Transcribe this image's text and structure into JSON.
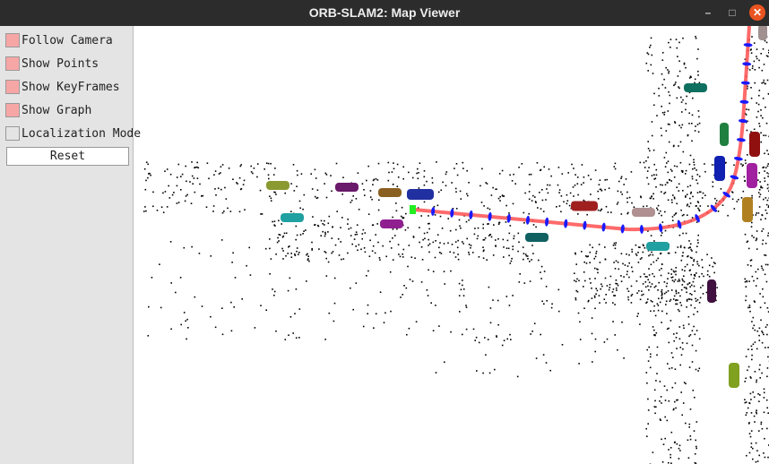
{
  "window": {
    "title": "ORB-SLAM2: Map Viewer",
    "minimize_icon": "minimize-icon",
    "maximize_icon": "maximize-icon",
    "close_icon": "close-icon"
  },
  "panel": {
    "checkboxes": [
      {
        "label": "Follow Camera",
        "checked": true
      },
      {
        "label": "Show Points",
        "checked": true
      },
      {
        "label": "Show KeyFrames",
        "checked": true
      },
      {
        "label": "Show Graph",
        "checked": true
      },
      {
        "label": "Localization Mode",
        "checked": false
      }
    ],
    "reset_label": "Reset"
  },
  "colors": {
    "trajectory": "#ff5050",
    "keyframe": "#1a1aff",
    "current_camera": "#22ee22",
    "map_points": "#000000",
    "checked": "#f7a6a6"
  },
  "objects": [
    {
      "color": "#8a9a30"
    },
    {
      "color": "#6a1a6a"
    },
    {
      "color": "#8a6020"
    },
    {
      "color": "#2030a0"
    },
    {
      "color": "#20a0a0"
    },
    {
      "color": "#902090"
    },
    {
      "color": "#106060"
    },
    {
      "color": "#a02020"
    },
    {
      "color": "#b09090"
    },
    {
      "color": "#20a0a0"
    },
    {
      "color": "#107060"
    },
    {
      "color": "#208040"
    },
    {
      "color": "#901010"
    },
    {
      "color": "#1020b0"
    },
    {
      "color": "#a020a0"
    },
    {
      "color": "#b08020"
    },
    {
      "color": "#401040"
    },
    {
      "color": "#80a020"
    },
    {
      "color": "#a09090"
    }
  ]
}
